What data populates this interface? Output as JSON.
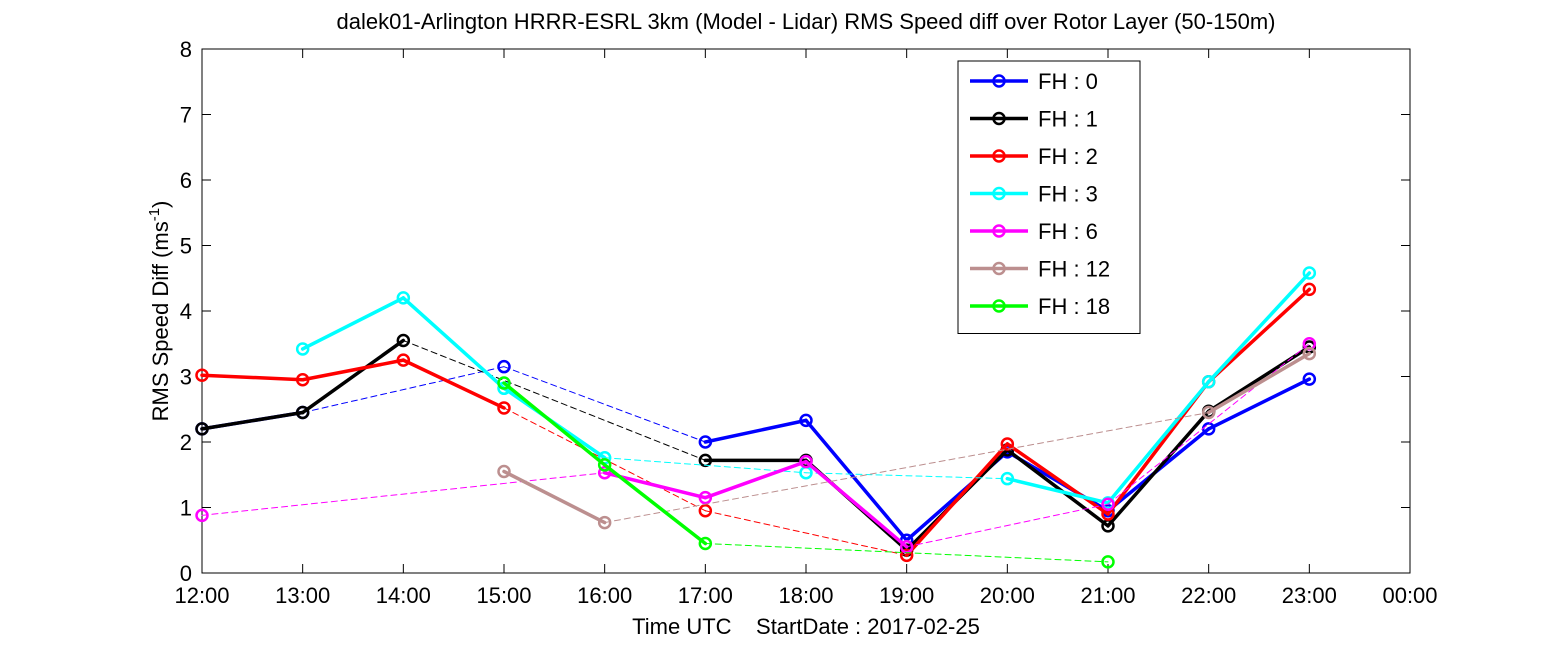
{
  "chart_data": {
    "type": "line",
    "title": "dalek01-Arlington HRRR-ESRL 3km (Model - Lidar) RMS Speed diff over Rotor Layer (50-150m)",
    "xlabel": "Time UTC    StartDate : 2017-02-25",
    "ylabel": "RMS Speed Diff (ms",
    "ylabel_sup": "-1",
    "ylabel_end": ")",
    "x_ticks": [
      "12:00",
      "13:00",
      "14:00",
      "15:00",
      "16:00",
      "17:00",
      "18:00",
      "19:00",
      "20:00",
      "21:00",
      "22:00",
      "23:00",
      "00:00"
    ],
    "y_ticks": [
      "0",
      "1",
      "2",
      "3",
      "4",
      "5",
      "6",
      "7",
      "8"
    ],
    "xlim": [
      0,
      12
    ],
    "ylim": [
      0,
      8
    ],
    "grid": false,
    "legend_position": "top-right",
    "series": [
      {
        "name": "FH : 0",
        "color": "#0000ff",
        "values": [
          2.2,
          2.45,
          null,
          3.15,
          null,
          2.0,
          2.33,
          0.5,
          1.85,
          0.95,
          2.2,
          2.96
        ]
      },
      {
        "name": "FH : 1",
        "color": "#000000",
        "values": [
          2.2,
          2.45,
          3.55,
          null,
          null,
          1.72,
          1.72,
          0.35,
          1.88,
          0.72,
          2.47,
          3.45
        ]
      },
      {
        "name": "FH : 2",
        "color": "#ff0000",
        "values": [
          3.02,
          2.95,
          3.25,
          2.52,
          null,
          0.95,
          null,
          0.27,
          1.97,
          0.9,
          2.92,
          4.33
        ]
      },
      {
        "name": "FH : 3",
        "color": "#00ffff",
        "values": [
          null,
          3.42,
          4.2,
          2.82,
          1.76,
          null,
          1.53,
          null,
          1.44,
          1.07,
          2.92,
          4.58
        ]
      },
      {
        "name": "FH : 6",
        "color": "#ff00ff",
        "values": [
          0.88,
          null,
          null,
          null,
          1.53,
          1.15,
          1.7,
          0.4,
          null,
          1.05,
          null,
          3.5
        ]
      },
      {
        "name": "FH : 12",
        "color": "#bc8f8f",
        "values": [
          null,
          null,
          null,
          1.55,
          0.77,
          null,
          null,
          null,
          null,
          null,
          2.45,
          3.35
        ]
      },
      {
        "name": "FH : 18",
        "color": "#00ff00",
        "values": [
          null,
          null,
          null,
          2.9,
          1.65,
          0.45,
          null,
          null,
          null,
          0.17,
          null,
          null
        ]
      }
    ]
  }
}
